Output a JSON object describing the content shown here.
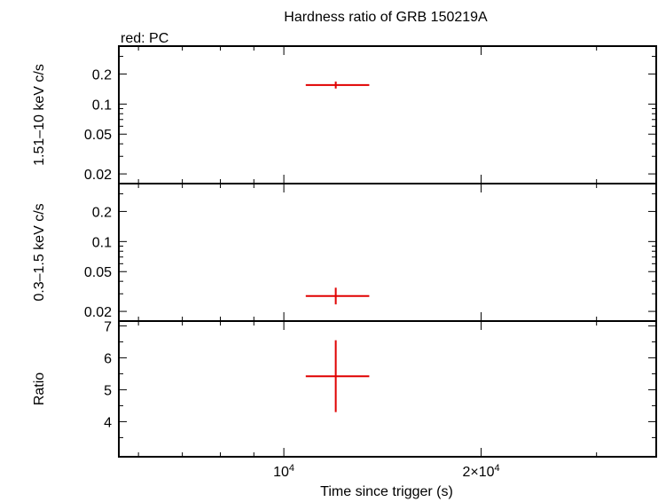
{
  "chart_data": {
    "type": "scatter",
    "title": "Hardness ratio of GRB 150219A",
    "legend": "red: PC",
    "xlabel": "Time since trigger (s)",
    "x_scale": "log",
    "xlim": [
      5600,
      37000
    ],
    "x_ticks": [
      {
        "value": 10000,
        "base": "10",
        "exp": "4"
      },
      {
        "value": 20000,
        "base": "2×10",
        "exp": "4"
      }
    ],
    "series_color": "#e00000",
    "panels": [
      {
        "id": "hard",
        "ylabel": "1.51–10 keV c/s",
        "y_scale": "log",
        "ylim": [
          0.016,
          0.38
        ],
        "ticks": [
          {
            "value": 0.02,
            "label": "0.02"
          },
          {
            "value": 0.05,
            "label": "0.05"
          },
          {
            "value": 0.1,
            "label": "0.1"
          },
          {
            "value": 0.2,
            "label": "0.2"
          }
        ],
        "points": [
          {
            "x": 12000,
            "x_lo": 10800,
            "x_hi": 13500,
            "y": 0.155,
            "y_lo": 0.143,
            "y_hi": 0.168
          }
        ]
      },
      {
        "id": "soft",
        "ylabel": "0.3–1.5 keV c/s",
        "y_scale": "log",
        "ylim": [
          0.016,
          0.38
        ],
        "ticks": [
          {
            "value": 0.02,
            "label": "0.02"
          },
          {
            "value": 0.05,
            "label": "0.05"
          },
          {
            "value": 0.1,
            "label": "0.1"
          },
          {
            "value": 0.2,
            "label": "0.2"
          }
        ],
        "points": [
          {
            "x": 12000,
            "x_lo": 10800,
            "x_hi": 13500,
            "y": 0.0285,
            "y_lo": 0.0235,
            "y_hi": 0.0345
          }
        ]
      },
      {
        "id": "ratio",
        "ylabel": "Ratio",
        "y_scale": "linear",
        "ylim": [
          2.9,
          7.15
        ],
        "ticks": [
          {
            "value": 4,
            "label": "4"
          },
          {
            "value": 5,
            "label": "5"
          },
          {
            "value": 6,
            "label": "6"
          },
          {
            "value": 7,
            "label": "7"
          }
        ],
        "points": [
          {
            "x": 12000,
            "x_lo": 10800,
            "x_hi": 13500,
            "y": 5.42,
            "y_lo": 4.3,
            "y_hi": 6.55
          }
        ]
      }
    ]
  }
}
